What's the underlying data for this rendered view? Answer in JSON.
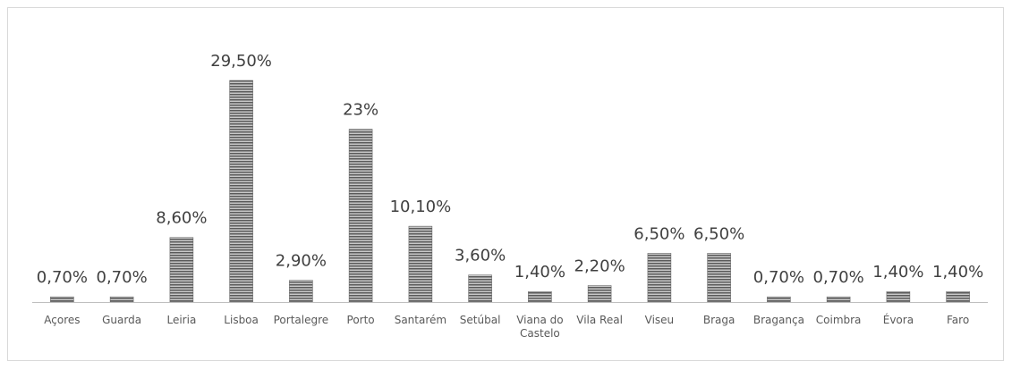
{
  "chart_data": {
    "type": "bar",
    "title": "",
    "xlabel": "",
    "ylabel": "",
    "ylim": [
      0,
      30
    ],
    "grid": false,
    "legend": "none",
    "categories": [
      "Açores",
      "Guarda",
      "Leiria",
      "Lisboa",
      "Portalegre",
      "Porto",
      "Santarém",
      "Setúbal",
      "Viana do Castelo",
      "Vila Real",
      "Viseu",
      "Braga",
      "Bragança",
      "Coimbra",
      "Évora",
      "Faro"
    ],
    "category_label_lines": [
      [
        "Açores"
      ],
      [
        "Guarda"
      ],
      [
        "Leiria"
      ],
      [
        "Lisboa"
      ],
      [
        "Portalegre"
      ],
      [
        "Porto"
      ],
      [
        "Santarém"
      ],
      [
        "Setúbal"
      ],
      [
        "Viana do",
        "Castelo"
      ],
      [
        "Vila Real"
      ],
      [
        "Viseu"
      ],
      [
        "Braga"
      ],
      [
        "Bragança"
      ],
      [
        "Coimbra"
      ],
      [
        "Évora"
      ],
      [
        "Faro"
      ]
    ],
    "values": [
      0.7,
      0.7,
      8.6,
      29.5,
      2.9,
      23,
      10.1,
      3.6,
      1.4,
      2.2,
      6.5,
      6.5,
      0.7,
      0.7,
      1.4,
      1.4
    ],
    "data_labels": [
      "0,70%",
      "0,70%",
      "8,60%",
      "29,50%",
      "2,90%",
      "23%",
      "10,10%",
      "3,60%",
      "1,40%",
      "2,20%",
      "6,50%",
      "6,50%",
      "0,70%",
      "0,70%",
      "1,40%",
      "1,40%"
    ],
    "colors": {
      "bar_light": "#c8c8c8",
      "bar_dark": "#5a5a5a",
      "axis": "#bfbfbf",
      "frame": "#d9d9d9"
    }
  }
}
